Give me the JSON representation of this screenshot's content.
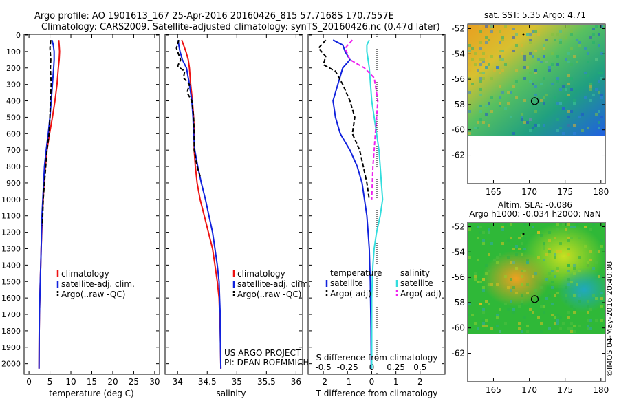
{
  "header": {
    "line1": "Argo profile: AO 1901613_167 25-Apr-2016 20160426_815 57.7168S 170.7557E",
    "line2": "Climatology: CARS2009. Satellite-adjusted climatology: synTS_20160426.nc (0.47d later)"
  },
  "credit": "©IMOS 04-May-2016 20:40:08",
  "project": {
    "line1": "US ARGO PROJECT",
    "line2": "PI: DEAN ROEMMICH"
  },
  "colors": {
    "climatology": "#ee1111",
    "satellite": "#1122dd",
    "argo": "#000000",
    "sal_sat": "#33dddd",
    "sal_argo": "#ee22ee"
  },
  "chart_data": [
    {
      "type": "line",
      "xlabel": "temperature (deg C)",
      "xlim": [
        -1,
        31
      ],
      "xticks": [
        0,
        5,
        10,
        15,
        20,
        25,
        30
      ],
      "ylim": [
        0,
        2060
      ],
      "yticks": [
        0,
        100,
        200,
        300,
        400,
        500,
        600,
        700,
        800,
        900,
        1000,
        1100,
        1200,
        1300,
        1400,
        1500,
        1600,
        1700,
        1800,
        1900,
        2000
      ],
      "legend": [
        "climatology",
        "satellite-adj. clim.",
        "Argo(..raw -QC)"
      ],
      "series": [
        {
          "name": "climatology",
          "x": [
            7.1,
            7.2,
            7.3,
            7.2,
            7.0,
            6.7,
            6.2,
            5.6,
            4.9,
            4.3,
            3.9,
            3.6,
            3.4,
            3.2,
            3.05,
            2.9,
            2.8,
            2.7,
            2.6,
            2.5,
            2.45,
            2.4
          ],
          "y": [
            30,
            60,
            100,
            150,
            200,
            300,
            400,
            500,
            600,
            700,
            800,
            900,
            1000,
            1100,
            1200,
            1300,
            1400,
            1500,
            1600,
            1700,
            1800,
            2030
          ]
        },
        {
          "name": "satellite-adj. clim.",
          "x": [
            5.5,
            5.8,
            6.0,
            6.0,
            5.9,
            5.6,
            5.3,
            5.0,
            4.6,
            4.1,
            3.7,
            3.5,
            3.3,
            3.1,
            3.0,
            2.9,
            2.8,
            2.7,
            2.6,
            2.5,
            2.45,
            2.4
          ],
          "y": [
            30,
            60,
            100,
            150,
            200,
            300,
            400,
            500,
            600,
            700,
            800,
            900,
            1000,
            1100,
            1200,
            1300,
            1400,
            1500,
            1600,
            1700,
            1800,
            2030
          ]
        },
        {
          "name": "Argo(..raw -QC)",
          "x": [
            5.2,
            5.0,
            5.2,
            5.1,
            5.3,
            5.2,
            5.1,
            5.0,
            4.8,
            4.3,
            4.0,
            3.7,
            3.4,
            3.2
          ],
          "y": [
            30,
            80,
            150,
            200,
            300,
            350,
            400,
            500,
            600,
            700,
            800,
            900,
            1000,
            1160
          ]
        }
      ]
    },
    {
      "type": "line",
      "xlabel": "salinity",
      "xlim": [
        33.8,
        36.1
      ],
      "xticks": [
        34,
        34.5,
        35,
        35.5,
        36
      ],
      "ylim": [
        0,
        2060
      ],
      "legend": [
        "climatology",
        "satellite-adj. clim.",
        "Argo(..raw -QC)"
      ],
      "series": [
        {
          "name": "climatology",
          "x": [
            34.07,
            34.1,
            34.14,
            34.18,
            34.2,
            34.22,
            34.25,
            34.27,
            34.28,
            34.28,
            34.3,
            34.33,
            34.38,
            34.45,
            34.52,
            34.59,
            34.63,
            34.67,
            34.7,
            34.71,
            34.72,
            34.73
          ],
          "y": [
            30,
            60,
            100,
            150,
            200,
            300,
            400,
            500,
            600,
            700,
            800,
            900,
            1000,
            1100,
            1200,
            1300,
            1400,
            1500,
            1600,
            1700,
            1800,
            2030
          ]
        },
        {
          "name": "satellite-adj. clim.",
          "x": [
            34.01,
            34.02,
            34.04,
            34.08,
            34.15,
            34.2,
            34.24,
            34.26,
            34.27,
            34.29,
            34.34,
            34.4,
            34.47,
            34.53,
            34.59,
            34.63,
            34.67,
            34.7,
            34.71,
            34.72,
            34.72,
            34.73
          ],
          "y": [
            30,
            60,
            100,
            150,
            200,
            300,
            400,
            500,
            600,
            700,
            800,
            900,
            1000,
            1100,
            1200,
            1300,
            1400,
            1500,
            1600,
            1700,
            1800,
            2030
          ]
        },
        {
          "name": "Argo(..raw -QC)",
          "x": [
            34.02,
            33.98,
            34.05,
            34.0,
            34.12,
            34.1,
            34.2,
            34.16,
            34.24,
            34.27,
            34.28,
            34.28,
            34.33,
            34.38
          ],
          "y": [
            30,
            80,
            150,
            190,
            220,
            260,
            300,
            350,
            400,
            500,
            600,
            700,
            800,
            860
          ]
        }
      ]
    },
    {
      "type": "line",
      "xlabel": "T difference from climatology",
      "xlim": [
        -2.6,
        3.0
      ],
      "xticks": [
        -2,
        -1,
        0,
        1,
        2
      ],
      "x2label": "S difference from climatology",
      "x2ticks": [
        "-0.5",
        "-0.25",
        "0",
        "0.25",
        "0.5"
      ],
      "ylim": [
        0,
        2060
      ],
      "legend_left_title": "temperature",
      "legend_right_title": "salinity",
      "legend": [
        "satellite",
        "Argo(-adj)",
        "satellite",
        "Argo(-adj)"
      ],
      "series": [
        {
          "name": "satellite",
          "x": [
            -1.6,
            -1.2,
            -1.1,
            -0.9,
            -1.2,
            -1.4,
            -1.6,
            -1.5,
            -1.3,
            -0.9,
            -0.6,
            -0.4,
            -0.3,
            -0.2,
            -0.15,
            -0.1,
            -0.08,
            -0.06,
            -0.05,
            -0.04,
            -0.03,
            -0.02
          ],
          "y": [
            30,
            60,
            100,
            150,
            200,
            300,
            400,
            500,
            600,
            700,
            800,
            900,
            1000,
            1100,
            1200,
            1300,
            1400,
            1500,
            1600,
            1700,
            1800,
            2030
          ]
        },
        {
          "name": "Argo(-adj)",
          "x": [
            -1.9,
            -2.2,
            -1.9,
            -2.0,
            -1.5,
            -1.2,
            -0.9,
            -0.7,
            -0.8,
            -0.5,
            -0.35,
            -0.2,
            -0.1
          ],
          "y": [
            30,
            80,
            130,
            180,
            220,
            300,
            400,
            500,
            600,
            700,
            800,
            900,
            1000
          ]
        },
        {
          "name": "satellite",
          "x": [
            -0.1,
            -0.2,
            -0.2,
            -0.15,
            -0.1,
            -0.05,
            0.0,
            0.1,
            0.2,
            0.3,
            0.35,
            0.4,
            0.45,
            0.35,
            0.2,
            0.1,
            0.05,
            0.02,
            0.0,
            0.0,
            0.0,
            0.0
          ],
          "y": [
            30,
            60,
            100,
            150,
            200,
            300,
            400,
            500,
            600,
            700,
            800,
            900,
            1000,
            1100,
            1200,
            1300,
            1400,
            1500,
            1600,
            1700,
            1800,
            2030
          ]
        },
        {
          "name": "Argo(-adj)",
          "x": [
            -0.8,
            -1.1,
            -0.9,
            -0.3,
            0.1,
            0.2,
            0.25,
            0.2,
            0.15,
            0.1,
            0.05,
            0.0
          ],
          "y": [
            30,
            80,
            150,
            200,
            260,
            350,
            400,
            500,
            600,
            700,
            800,
            1000
          ]
        }
      ]
    },
    {
      "type": "heatmap",
      "title": "sat. SST: 5.35 Argo: 4.71",
      "xticks": [
        165,
        170,
        175,
        180
      ],
      "yticks": [
        -52,
        -54,
        -56,
        -58,
        -60,
        -62
      ],
      "xlim": [
        161.5,
        180.5
      ],
      "ylim": [
        -64.2,
        -51.7
      ],
      "argo_position": [
        170.76,
        -57.72
      ]
    },
    {
      "type": "heatmap",
      "title": "Altim. SLA: -0.086",
      "subtitle": "Argo h1000: -0.034 h2000: NaN",
      "xticks": [
        165,
        170,
        175,
        180
      ],
      "yticks": [
        -52,
        -54,
        -56,
        -58,
        -60,
        -62
      ],
      "xlim": [
        161.5,
        180.5
      ],
      "ylim": [
        -64.2,
        -51.7
      ],
      "argo_position": [
        170.76,
        -57.72
      ]
    }
  ]
}
